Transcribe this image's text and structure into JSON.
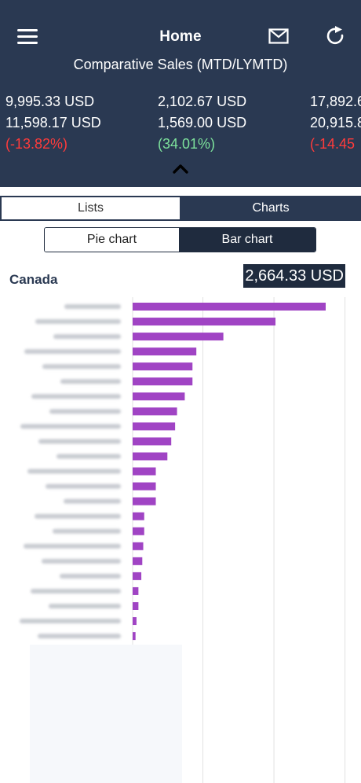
{
  "nav": {
    "title": "Home",
    "menu_icon": "hamburger-icon",
    "mail_icon": "mail-icon",
    "refresh_icon": "refresh-icon"
  },
  "header": {
    "subtitle": "Comparative Sales (MTD/LYMTD)",
    "kpis": [
      {
        "current": "9,995.33 USD",
        "previous": "11,598.17 USD",
        "change": "(-13.82%)",
        "trend": "negative"
      },
      {
        "current": "2,102.67 USD",
        "previous": "1,569.00 USD",
        "change": "(34.01%)",
        "trend": "positive"
      },
      {
        "current": "17,892.6",
        "previous": "20,915.8",
        "change": "(-14.45",
        "trend": "negative"
      }
    ],
    "collapse_icon": "chevron-up-icon"
  },
  "tabs": {
    "lists_label": "Lists",
    "charts_label": "Charts",
    "active": "Lists"
  },
  "chart_type": {
    "pie_label": "Pie chart",
    "bar_label": "Bar chart",
    "active": "Bar chart"
  },
  "region": {
    "name": "Canada",
    "total": "2,664.33 USD"
  },
  "colors": {
    "header_bg": "#2a3952",
    "bar": "#a044c4",
    "negative": "#ff3b3b",
    "positive": "#7de29c",
    "active_button": "#1f2b3e"
  },
  "chart_data": {
    "type": "bar",
    "orientation": "horizontal",
    "title": "",
    "xlabel": "",
    "ylabel": "",
    "labels_blurred": true,
    "categories": [
      "",
      "",
      "",
      "",
      "",
      "",
      "",
      "",
      "",
      "",
      "",
      "",
      "",
      "",
      "",
      "",
      "",
      "",
      "",
      "",
      "",
      "",
      "",
      ""
    ],
    "values": [
      100,
      74,
      47,
      33,
      31,
      31,
      27,
      23,
      22,
      20,
      18,
      12,
      12,
      12,
      6,
      6,
      5.5,
      5,
      4.5,
      3,
      3,
      2,
      1.5,
      1
    ],
    "xlim": [
      0,
      100
    ],
    "grid": true,
    "bar_color": "#a044c4"
  }
}
